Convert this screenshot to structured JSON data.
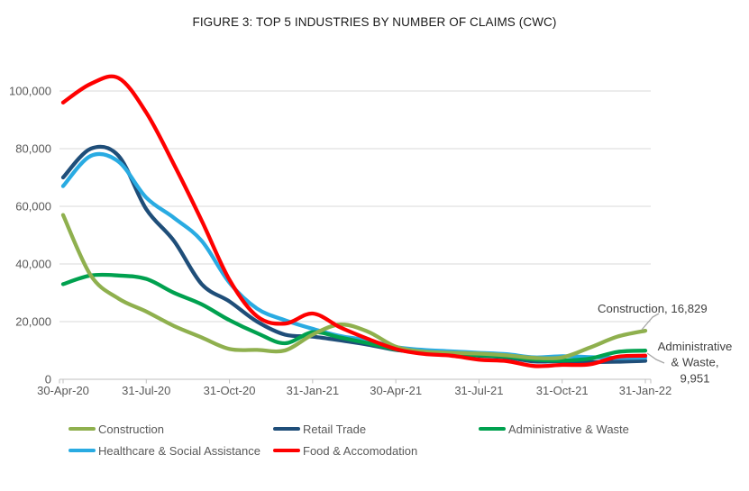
{
  "title": "FIGURE 3: TOP 5 INDUSTRIES BY NUMBER OF CLAIMS (CWC)",
  "chart_data": {
    "type": "line",
    "title": "FIGURE 3: TOP 5 INDUSTRIES BY NUMBER OF CLAIMS (CWC)",
    "xlabel": "",
    "ylabel": "",
    "ylim": [
      0,
      100000
    ],
    "y_ticks": [
      0,
      20000,
      40000,
      60000,
      80000,
      100000
    ],
    "y_tick_labels": [
      "0",
      "20,000",
      "40,000",
      "60,000",
      "80,000",
      "100,000"
    ],
    "x_tick_labels": [
      "30-Apr-20",
      "31-Jul-20",
      "31-Oct-20",
      "31-Jan-21",
      "30-Apr-21",
      "31-Jul-21",
      "31-Oct-21",
      "31-Jan-22"
    ],
    "categories": [
      "30-Apr-20",
      "31-May-20",
      "30-Jun-20",
      "31-Jul-20",
      "31-Aug-20",
      "30-Sep-20",
      "31-Oct-20",
      "30-Nov-20",
      "31-Dec-20",
      "31-Jan-21",
      "28-Feb-21",
      "31-Mar-21",
      "30-Apr-21",
      "31-May-21",
      "30-Jun-21",
      "31-Jul-21",
      "31-Aug-21",
      "30-Sep-21",
      "31-Oct-21",
      "30-Nov-21",
      "31-Dec-21",
      "31-Jan-22"
    ],
    "grid": true,
    "legend_position": "bottom",
    "series": [
      {
        "name": "Construction",
        "color": "#8FB04E",
        "values": [
          57000,
          36000,
          28000,
          23500,
          18500,
          14500,
          10500,
          10200,
          10000,
          15500,
          19000,
          16500,
          11300,
          9600,
          9200,
          8900,
          8300,
          7400,
          7600,
          11000,
          14800,
          16829
        ]
      },
      {
        "name": "Retail Trade",
        "color": "#1F4E79",
        "values": [
          70000,
          80000,
          77500,
          59000,
          48000,
          33000,
          27000,
          20000,
          15500,
          14800,
          13500,
          12000,
          10200,
          9200,
          8600,
          8200,
          7600,
          6200,
          6300,
          6000,
          6100,
          6400
        ]
      },
      {
        "name": "Administrative & Waste",
        "color": "#00A14F",
        "values": [
          33000,
          36000,
          36000,
          34800,
          30000,
          26000,
          20500,
          16000,
          12500,
          16300,
          14500,
          12500,
          10300,
          9300,
          8800,
          8300,
          7800,
          6800,
          6500,
          7200,
          9500,
          9951
        ]
      },
      {
        "name": "Healthcare & Social Assistance",
        "color": "#29ABE2",
        "values": [
          67000,
          77500,
          75500,
          63000,
          56000,
          48000,
          33500,
          24500,
          20500,
          17500,
          15000,
          13500,
          11200,
          10200,
          9700,
          9200,
          8700,
          7600,
          8000,
          7700,
          7400,
          7500
        ]
      },
      {
        "name": "Food & Accomodation",
        "color": "#FE0000",
        "values": [
          96000,
          102500,
          104500,
          92500,
          74500,
          55000,
          34500,
          21800,
          19300,
          22800,
          18000,
          14000,
          10500,
          8800,
          8200,
          6800,
          6300,
          4600,
          5000,
          5200,
          7800,
          8200
        ]
      }
    ],
    "annotations": [
      {
        "label": "Construction, 16,829",
        "lines": [
          "Construction, 16,829"
        ],
        "value": 16829
      },
      {
        "label": "Administrative & Waste, 9,951",
        "lines": [
          "Administrative",
          "& Waste,",
          "9,951"
        ],
        "value": 9951
      }
    ]
  },
  "style": {
    "axis_color": "#BFBFBF",
    "grid_color": "#D9D9D9",
    "tick_text_color": "#595959",
    "annotation_text_color": "#404040",
    "leader_color": "#A6A6A6"
  }
}
